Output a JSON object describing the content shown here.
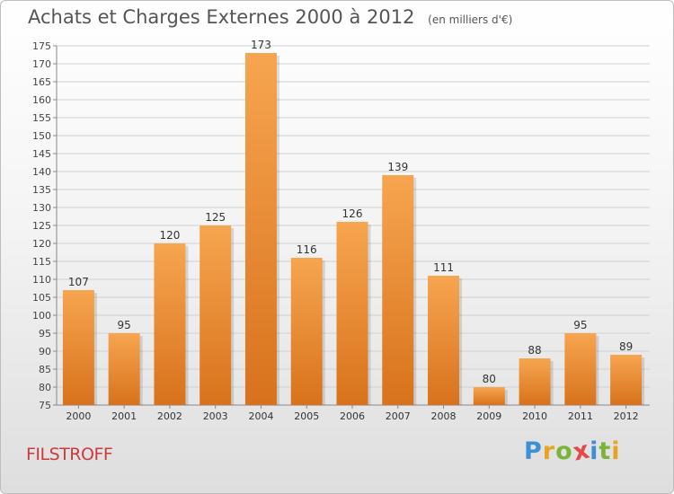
{
  "chart_data": {
    "type": "bar",
    "title": "Achats et Charges Externes 2000 à 2012",
    "subtitle": "(en milliers d'€)",
    "categories": [
      "2000",
      "2001",
      "2002",
      "2003",
      "2004",
      "2005",
      "2006",
      "2007",
      "2008",
      "2009",
      "2010",
      "2011",
      "2012"
    ],
    "values": [
      107,
      95,
      120,
      125,
      173,
      116,
      126,
      139,
      111,
      80,
      88,
      95,
      89
    ],
    "ylim": [
      75,
      175
    ],
    "yticks": [
      75,
      80,
      85,
      90,
      95,
      100,
      105,
      110,
      115,
      120,
      125,
      130,
      135,
      140,
      145,
      150,
      155,
      160,
      165,
      170,
      175
    ],
    "grid": true,
    "bar_color_light": "#f7a550",
    "bar_color_dark": "#d8721c"
  },
  "commune": "FILSTROFF",
  "logo": {
    "letters": [
      "P",
      "r",
      "o",
      "x",
      "i",
      "t",
      "i"
    ],
    "colors": [
      "#3d8fd6",
      "#e8a323",
      "#7ab43a",
      "#e54848",
      "#3d8fd6",
      "#7ab43a",
      "#e8a323"
    ]
  }
}
